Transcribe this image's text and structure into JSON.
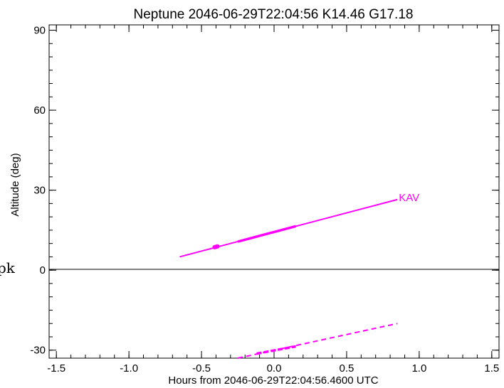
{
  "chart_data": {
    "type": "line",
    "title": "Neptune 2046-06-29T22:04:56  K14.46  G17.18",
    "xlabel": "Hours from 2046-06-29T22:04:56.4600 UTC",
    "ylabel": "Altitude (deg)",
    "xlim": [
      -1.55,
      1.55
    ],
    "ylim": [
      -33,
      92
    ],
    "x_ticks": [
      -1.5,
      -1.0,
      -0.5,
      0.0,
      0.5,
      1.0,
      1.5
    ],
    "x_tick_labels": [
      "-1.5",
      "-1.0",
      "-0.5",
      "0.0",
      "0.5",
      "1.0",
      "1.5"
    ],
    "y_ticks": [
      -30,
      0,
      30,
      60,
      90
    ],
    "y_tick_labels": [
      "-30",
      "0",
      "30",
      "60",
      "90"
    ],
    "zero_line": 0,
    "grid": false,
    "color": "#ff00ff",
    "series": [
      {
        "name": "KAV",
        "style": "solid",
        "x": [
          -0.65,
          0.85
        ],
        "y": [
          5.0,
          26.5
        ]
      },
      {
        "style": "thick",
        "x": [
          -0.25,
          0.15
        ],
        "y": [
          10.7,
          16.5
        ]
      },
      {
        "style": "dot",
        "x": [
          -0.41,
          -0.39
        ],
        "y": [
          8.6,
          8.9
        ]
      },
      {
        "style": "dashed",
        "x": [
          -0.25,
          0.85
        ],
        "y": [
          -33,
          -20
        ]
      },
      {
        "style": "thick-dashed",
        "x": [
          -0.12,
          0.15
        ],
        "y": [
          -31.3,
          -28.6
        ]
      }
    ]
  },
  "side_text": "pk"
}
